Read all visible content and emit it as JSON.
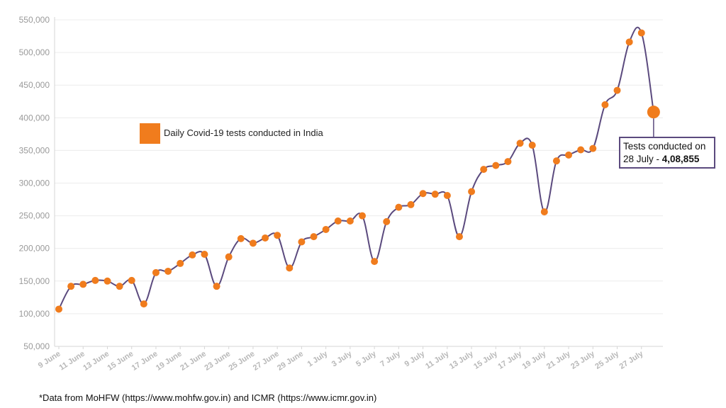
{
  "chart_data": {
    "type": "line",
    "series": [
      {
        "name": "Daily Covid-19 tests conducted in India",
        "color": "#f07c1d",
        "line_color": "#5b4a7e",
        "values": [
          107000,
          142000,
          145000,
          151000,
          150000,
          142000,
          151000,
          115000,
          163000,
          165000,
          177000,
          190000,
          191000,
          142000,
          187000,
          215000,
          208000,
          216000,
          220000,
          170000,
          210000,
          218000,
          229000,
          242000,
          242000,
          250000,
          180000,
          241000,
          263000,
          267000,
          284000,
          283000,
          281000,
          218000,
          287000,
          321000,
          327000,
          333000,
          361000,
          358000,
          256000,
          334000,
          343000,
          351000,
          353000,
          420000,
          442000,
          516000,
          530000,
          408855
        ]
      }
    ],
    "ylim": [
      50000,
      550000
    ],
    "yticks": [
      "50,000",
      "100,000",
      "150,000",
      "200,000",
      "250,000",
      "300,000",
      "350,000",
      "400,000",
      "450,000",
      "500,000",
      "550,000"
    ],
    "xtick_labels": [
      "9 June",
      "11 June",
      "13 June",
      "15 June",
      "17 June",
      "19 June",
      "21 June",
      "23 June",
      "25 June",
      "27 June",
      "29 June",
      "1 July",
      "3 July",
      "5 July",
      "7 July",
      "9 July",
      "11 July",
      "13 July",
      "15 July",
      "17 July",
      "19 July",
      "21 July",
      "23 July",
      "25 July",
      "27 July"
    ],
    "legend_position": "upper-left",
    "grid": true,
    "annotation": {
      "line1": "Tests conducted on",
      "line2_prefix": "28 July - ",
      "line2_value": "4,08,855",
      "border_color": "#5b4a7e"
    },
    "footnote": "*Data from MoHFW (https://www.mohfw.gov.in) and ICMR (https://www.icmr.gov.in)"
  }
}
